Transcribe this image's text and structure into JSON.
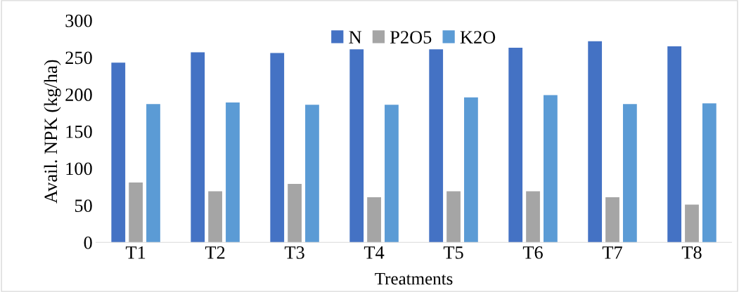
{
  "chart_data": {
    "type": "bar",
    "xlabel": "Treatments",
    "ylabel": "Avail. NPK (kg/ha)",
    "categories": [
      "T1",
      "T2",
      "T3",
      "T4",
      "T5",
      "T6",
      "T7",
      "T8"
    ],
    "series": [
      {
        "name": "N",
        "color": "#4472c4",
        "values": [
          243,
          257,
          256,
          261,
          261,
          263,
          272,
          265
        ]
      },
      {
        "name": "P2O5",
        "color": "#a5a5a5",
        "values": [
          81,
          69,
          79,
          61,
          69,
          69,
          61,
          51
        ]
      },
      {
        "name": "K2O",
        "color": "#5b9bd5",
        "values": [
          187,
          189,
          186,
          186,
          196,
          199,
          187,
          188
        ]
      }
    ],
    "ylim": [
      0,
      300
    ],
    "yticks": [
      0,
      50,
      100,
      150,
      200,
      250,
      300
    ],
    "grid": false,
    "legend": "top"
  }
}
